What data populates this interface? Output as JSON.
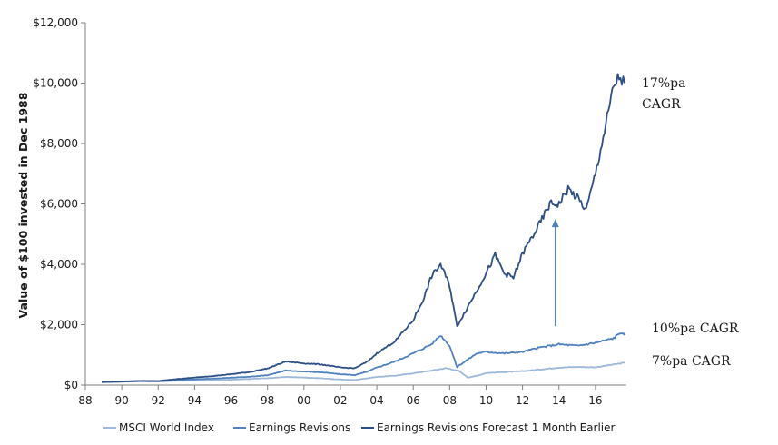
{
  "chart_data": {
    "type": "line",
    "title": "",
    "xlabel": "",
    "ylabel": "Value of $100 invested in Dec 1988",
    "ylim": [
      0,
      12000
    ],
    "xlim": [
      1988,
      2017.7
    ],
    "y_ticks": [
      {
        "value": 0,
        "label": "$0"
      },
      {
        "value": 2000,
        "label": "$2,000"
      },
      {
        "value": 4000,
        "label": "$4,000"
      },
      {
        "value": 6000,
        "label": "$6,000"
      },
      {
        "value": 8000,
        "label": "$8,000"
      },
      {
        "value": 10000,
        "label": "$10,000"
      },
      {
        "value": 12000,
        "label": "$12,000"
      }
    ],
    "x_ticks": [
      {
        "value": 1988,
        "label": "88"
      },
      {
        "value": 1990,
        "label": "90"
      },
      {
        "value": 1992,
        "label": "92"
      },
      {
        "value": 1994,
        "label": "94"
      },
      {
        "value": 1996,
        "label": "96"
      },
      {
        "value": 1998,
        "label": "98"
      },
      {
        "value": 2000,
        "label": "00"
      },
      {
        "value": 2002,
        "label": "02"
      },
      {
        "value": 2004,
        "label": "04"
      },
      {
        "value": 2006,
        "label": "06"
      },
      {
        "value": 2008,
        "label": "08"
      },
      {
        "value": 2010,
        "label": "10"
      },
      {
        "value": 2012,
        "label": "12"
      },
      {
        "value": 2014,
        "label": "14"
      },
      {
        "value": 2016,
        "label": "16"
      }
    ],
    "grid": false,
    "legend_position": "bottom",
    "series": [
      {
        "name": "MSCI World Index",
        "color": "#9db8d9",
        "x": [
          1988.9,
          1990,
          1991,
          1992,
          1993,
          1994,
          1995,
          1996,
          1997,
          1998,
          1999,
          2000,
          2001,
          2002,
          2002.8,
          2003.5,
          2004,
          2005,
          2006,
          2007,
          2007.8,
          2008.5,
          2009,
          2009.5,
          2010,
          2011,
          2012,
          2013,
          2014,
          2015,
          2016,
          2017,
          2017.6
        ],
        "y": [
          100,
          110,
          125,
          120,
          145,
          150,
          160,
          180,
          205,
          230,
          270,
          250,
          225,
          185,
          170,
          230,
          270,
          310,
          390,
          480,
          560,
          470,
          250,
          310,
          400,
          430,
          460,
          520,
          580,
          600,
          590,
          680,
          740
        ]
      },
      {
        "name": "Earnings Revisions",
        "color": "#4f81bd",
        "x": [
          1988.9,
          1990,
          1991,
          1992,
          1993,
          1994,
          1995,
          1996,
          1997,
          1998,
          1999,
          2000,
          2001,
          2002,
          2002.8,
          2003.5,
          2004,
          2005,
          2006,
          2007,
          2007.5,
          2008,
          2008.4,
          2009,
          2009.5,
          2010,
          2011,
          2012,
          2013,
          2014,
          2015,
          2016,
          2017,
          2017.4,
          2017.6
        ],
        "y": [
          100,
          115,
          135,
          130,
          170,
          190,
          215,
          245,
          275,
          330,
          480,
          450,
          420,
          360,
          330,
          450,
          580,
          780,
          1050,
          1350,
          1650,
          1300,
          600,
          850,
          1050,
          1100,
          1050,
          1100,
          1250,
          1350,
          1300,
          1400,
          1550,
          1750,
          1650
        ]
      },
      {
        "name": "Earnings Revisions Forecast 1 Month Earlier",
        "color": "#2e4f86",
        "x": [
          1988.9,
          1990,
          1991,
          1992,
          1993,
          1994,
          1995,
          1996,
          1997,
          1998,
          1999,
          2000,
          2001,
          2002,
          2002.8,
          2003.5,
          2004,
          2005,
          2006,
          2006.6,
          2007,
          2007.5,
          2008,
          2008.4,
          2009,
          2010,
          2010.5,
          2011,
          2011.5,
          2012,
          2013,
          2013.5,
          2014,
          2014.5,
          2015,
          2015.5,
          2016,
          2016.5,
          2017,
          2017.3,
          2017.6
        ],
        "y": [
          100,
          120,
          140,
          135,
          200,
          250,
          300,
          360,
          430,
          550,
          780,
          720,
          680,
          580,
          560,
          780,
          1050,
          1450,
          2150,
          2900,
          3600,
          4000,
          3300,
          1950,
          2600,
          3700,
          4300,
          3700,
          3550,
          4350,
          5400,
          6000,
          6000,
          6500,
          6200,
          5800,
          7000,
          8400,
          9900,
          10200,
          10000
        ]
      }
    ],
    "annotations": [
      {
        "text_lines": [
          "17%pa",
          "CAGR"
        ],
        "series": "Earnings Revisions Forecast 1 Month Earlier"
      },
      {
        "text_lines": [
          "10%pa CAGR"
        ],
        "series": "Earnings Revisions"
      },
      {
        "text_lines": [
          "7%pa CAGR"
        ],
        "series": "MSCI World Index"
      }
    ],
    "arrow": {
      "x": 2013.8,
      "from_y": 1950,
      "to_y": 5500,
      "color": "#4f81bd"
    }
  }
}
